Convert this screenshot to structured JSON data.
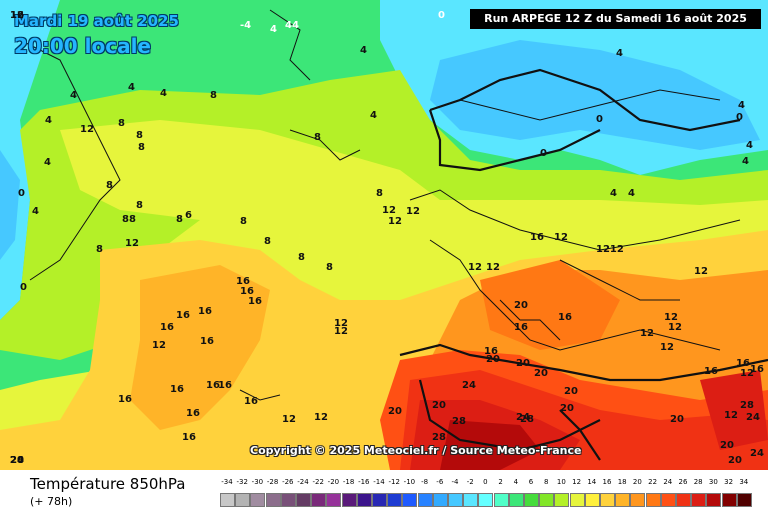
{
  "header": {
    "date": "Mardi 19 août 2025",
    "local_time": "20:00 locale",
    "run": "Run ARPEGE 12 Z du Samedi 16 août 2025"
  },
  "copyright": "Copyright © 2025 Meteociel.fr / Source Meteo-France",
  "footer": {
    "variable": "Température 850hPa",
    "lead": "(+ 78h)"
  },
  "legend": {
    "labels": [
      "-34",
      "-32",
      "-30",
      "-28",
      "-26",
      "-24",
      "-22",
      "-20",
      "-18",
      "-16",
      "-14",
      "-12",
      "-10",
      "-8",
      "-6",
      "-4",
      "-2",
      "0",
      "2",
      "4",
      "6",
      "8",
      "10",
      "12",
      "14",
      "16",
      "18",
      "20",
      "22",
      "24",
      "26",
      "28",
      "30",
      "32",
      "34"
    ],
    "colors": [
      "#c8c8c8",
      "#b4b4b4",
      "#a08ca0",
      "#8c6e8c",
      "#785078",
      "#643c64",
      "#7a2a7a",
      "#96329a",
      "#5a1a7a",
      "#3c148c",
      "#2828b4",
      "#1e3cd2",
      "#1e5aff",
      "#2882ff",
      "#32aaff",
      "#46c8ff",
      "#5ae6ff",
      "#64ffff",
      "#50ffc8",
      "#3ce678",
      "#46dc3c",
      "#82e628",
      "#b4f028",
      "#e6f53c",
      "#fff03c",
      "#ffd23c",
      "#ffb428",
      "#ff961e",
      "#ff7814",
      "#ff5014",
      "#f03214",
      "#dc1e14",
      "#b40a0a",
      "#820000",
      "#500000"
    ]
  },
  "map_values": [
    {
      "t": "-4",
      "light": true
    },
    {
      "t": "4",
      "light": true
    },
    {
      "t": "44",
      "light": true
    },
    {
      "t": "0",
      "light": true
    },
    {
      "t": "4"
    },
    {
      "t": "4"
    },
    {
      "t": "4"
    },
    {
      "t": "8"
    },
    {
      "t": "12"
    },
    {
      "t": "8"
    },
    {
      "t": "4"
    },
    {
      "t": "8"
    },
    {
      "t": "8"
    },
    {
      "t": "8"
    },
    {
      "t": "4"
    },
    {
      "t": "0"
    },
    {
      "t": "4"
    },
    {
      "t": "8"
    },
    {
      "t": "88"
    },
    {
      "t": "8"
    },
    {
      "t": "6"
    },
    {
      "t": "8"
    },
    {
      "t": "8"
    },
    {
      "t": "12"
    },
    {
      "t": "8"
    },
    {
      "t": "4"
    },
    {
      "t": "0"
    },
    {
      "t": "4"
    },
    {
      "t": "8"
    },
    {
      "t": "8"
    },
    {
      "t": "8"
    },
    {
      "t": "8"
    },
    {
      "t": "12"
    },
    {
      "t": "12"
    },
    {
      "t": "12"
    },
    {
      "t": "12"
    },
    {
      "t": "12"
    },
    {
      "t": "16"
    },
    {
      "t": "12"
    },
    {
      "t": "1212"
    },
    {
      "t": "12"
    },
    {
      "t": "4"
    },
    {
      "t": "4"
    },
    {
      "t": "0"
    },
    {
      "t": "0"
    },
    {
      "t": "4"
    },
    {
      "t": "4"
    },
    {
      "t": "4"
    },
    {
      "t": "4"
    },
    {
      "t": "0"
    },
    {
      "t": "12"
    },
    {
      "t": "16"
    },
    {
      "t": "16"
    },
    {
      "t": "16"
    },
    {
      "t": "16"
    },
    {
      "t": "16"
    },
    {
      "t": "12"
    },
    {
      "t": "16"
    },
    {
      "t": "16"
    },
    {
      "t": "16"
    },
    {
      "t": "16"
    },
    {
      "t": "16"
    },
    {
      "t": "16"
    },
    {
      "t": "16"
    },
    {
      "t": "16"
    },
    {
      "t": "16"
    },
    {
      "t": "12"
    },
    {
      "t": "12"
    },
    {
      "t": "12"
    },
    {
      "t": "12"
    },
    {
      "t": "12"
    },
    {
      "t": "16"
    },
    {
      "t": "20"
    },
    {
      "t": "20"
    },
    {
      "t": "20"
    },
    {
      "t": "16"
    },
    {
      "t": "16"
    },
    {
      "t": "20"
    },
    {
      "t": "20"
    },
    {
      "t": "24"
    },
    {
      "t": "20"
    },
    {
      "t": "20"
    },
    {
      "t": "20"
    },
    {
      "t": "24"
    },
    {
      "t": "28"
    },
    {
      "t": "28"
    },
    {
      "t": "28"
    },
    {
      "t": "28"
    },
    {
      "t": "24"
    },
    {
      "t": "20"
    },
    {
      "t": "12"
    },
    {
      "t": "12"
    },
    {
      "t": "12"
    },
    {
      "t": "12"
    },
    {
      "t": "16"
    },
    {
      "t": "16"
    },
    {
      "t": "16"
    },
    {
      "t": "20"
    },
    {
      "t": "24"
    },
    {
      "t": "20"
    },
    {
      "t": "20"
    },
    {
      "t": "28"
    },
    {
      "t": "24"
    },
    {
      "t": "20"
    },
    {
      "t": "16"
    },
    {
      "t": "12"
    }
  ]
}
